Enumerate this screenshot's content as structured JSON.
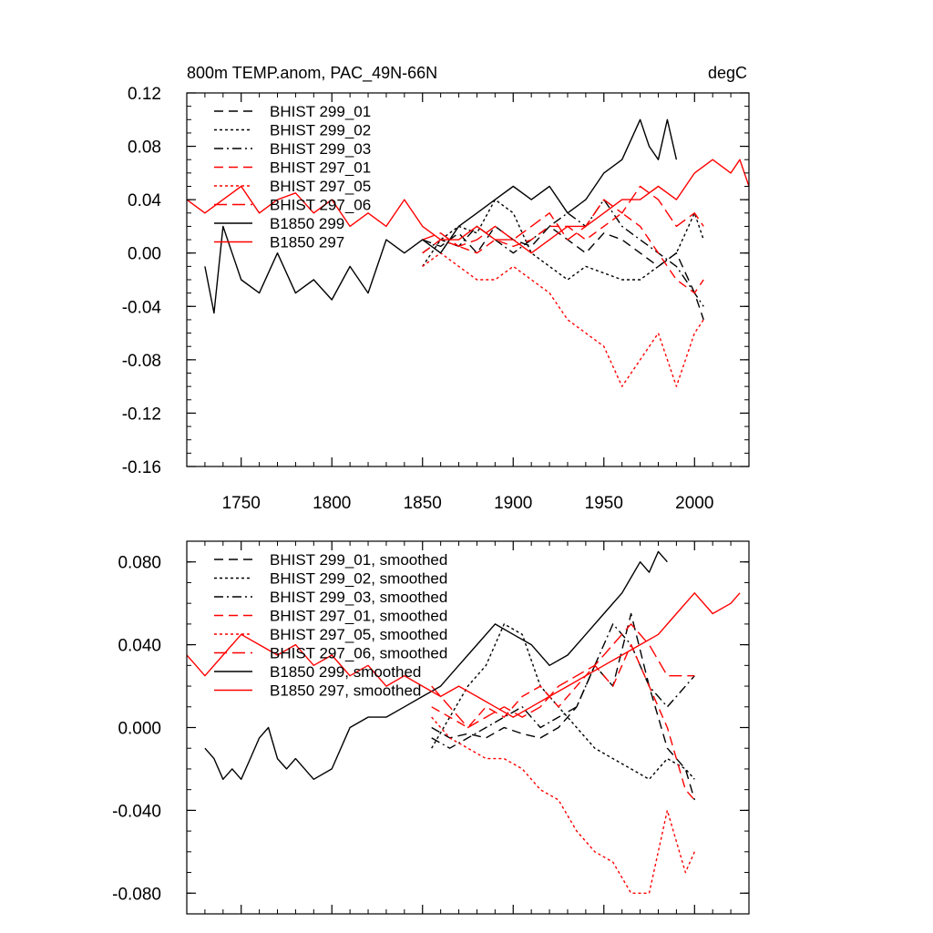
{
  "colors": {
    "black": "#000000",
    "red": "#ff0000"
  },
  "chart_data": [
    {
      "type": "line",
      "title": "800m TEMP.anom, PAC_49N-66N",
      "units": "degC",
      "xlim": [
        1720,
        2030
      ],
      "ylim": [
        -0.16,
        0.12
      ],
      "xticks": [
        1750,
        1800,
        1850,
        1900,
        1950,
        2000
      ],
      "xtick_labels": [
        "1750",
        "1800",
        "1850",
        "1900",
        "1950",
        "2000"
      ],
      "yticks": [
        0.12,
        0.08,
        0.04,
        0.0,
        -0.04,
        -0.08,
        -0.12,
        -0.16
      ],
      "ytick_labels": [
        "0.12",
        "0.08",
        "0.04",
        "0.00",
        "-0.04",
        "-0.08",
        "-0.12",
        "-0.16"
      ],
      "legend_position": "top-left",
      "series": [
        {
          "name": "BHIST 299_01",
          "color": "#000000",
          "dash": "dashed",
          "x": [
            1850,
            1860,
            1870,
            1880,
            1890,
            1900,
            1910,
            1920,
            1930,
            1940,
            1950,
            1960,
            1970,
            1980,
            1990,
            2000,
            2005
          ],
          "y": [
            0.01,
            0.005,
            0.015,
            0.0,
            0.02,
            0.01,
            0.005,
            0.02,
            0.01,
            0.0,
            0.015,
            0.01,
            0.0,
            -0.01,
            0.0,
            -0.03,
            -0.05
          ]
        },
        {
          "name": "BHIST 299_02",
          "color": "#000000",
          "dash": "dotted",
          "x": [
            1850,
            1860,
            1870,
            1880,
            1890,
            1900,
            1910,
            1920,
            1930,
            1940,
            1950,
            1960,
            1970,
            1980,
            1990,
            2000,
            2005
          ],
          "y": [
            -0.01,
            0.01,
            0.02,
            0.015,
            0.04,
            0.03,
            0.0,
            -0.01,
            -0.02,
            -0.01,
            -0.015,
            -0.02,
            -0.02,
            -0.01,
            0.0,
            0.03,
            0.01
          ]
        },
        {
          "name": "BHIST 299_03",
          "color": "#000000",
          "dash": "dashdot",
          "x": [
            1850,
            1860,
            1870,
            1880,
            1890,
            1900,
            1910,
            1920,
            1930,
            1940,
            1950,
            1960,
            1970,
            1980,
            1990,
            2000,
            2005
          ],
          "y": [
            0.0,
            0.01,
            0.005,
            0.02,
            0.01,
            0.0,
            0.01,
            0.02,
            0.03,
            0.02,
            0.04,
            0.02,
            0.01,
            0.0,
            -0.01,
            -0.03,
            -0.04
          ]
        },
        {
          "name": "BHIST 297_01",
          "color": "#ff0000",
          "dash": "dashed",
          "x": [
            1850,
            1860,
            1870,
            1880,
            1890,
            1900,
            1910,
            1920,
            1930,
            1940,
            1950,
            1960,
            1970,
            1980,
            1990,
            2000,
            2005
          ],
          "y": [
            0.0,
            0.01,
            0.005,
            0.0,
            0.01,
            0.005,
            0.01,
            0.02,
            0.02,
            0.01,
            0.02,
            0.03,
            0.02,
            0.0,
            -0.02,
            -0.03,
            -0.02
          ]
        },
        {
          "name": "BHIST 297_05",
          "color": "#ff0000",
          "dash": "dotted",
          "x": [
            1850,
            1860,
            1870,
            1880,
            1890,
            1900,
            1910,
            1920,
            1930,
            1940,
            1950,
            1960,
            1970,
            1980,
            1990,
            2000,
            2005
          ],
          "y": [
            -0.01,
            0.0,
            -0.01,
            -0.02,
            -0.02,
            -0.01,
            -0.02,
            -0.03,
            -0.05,
            -0.06,
            -0.07,
            -0.1,
            -0.08,
            -0.06,
            -0.1,
            -0.06,
            -0.05
          ]
        },
        {
          "name": "BHIST 297_06",
          "color": "#ff0000",
          "dash": "longdash",
          "x": [
            1850,
            1860,
            1870,
            1880,
            1890,
            1900,
            1910,
            1920,
            1930,
            1940,
            1950,
            1960,
            1970,
            1980,
            1990,
            2000,
            2005
          ],
          "y": [
            0.01,
            0.015,
            0.005,
            0.01,
            0.02,
            0.01,
            0.02,
            0.03,
            0.01,
            0.02,
            0.04,
            0.03,
            0.05,
            0.04,
            0.02,
            0.03,
            0.02
          ]
        },
        {
          "name": "B1850 299",
          "color": "#000000",
          "dash": "solid",
          "x": [
            1730,
            1735,
            1740,
            1750,
            1760,
            1770,
            1780,
            1790,
            1800,
            1810,
            1820,
            1830,
            1840,
            1850,
            1860,
            1870,
            1880,
            1890,
            1900,
            1910,
            1920,
            1930,
            1940,
            1950,
            1960,
            1970,
            1975,
            1980,
            1985,
            1990
          ],
          "y": [
            -0.01,
            -0.045,
            0.02,
            -0.02,
            -0.03,
            0.0,
            -0.03,
            -0.02,
            -0.035,
            -0.01,
            -0.03,
            0.01,
            0.0,
            0.01,
            0.0,
            0.02,
            0.03,
            0.04,
            0.05,
            0.04,
            0.05,
            0.03,
            0.04,
            0.06,
            0.07,
            0.1,
            0.08,
            0.07,
            0.1,
            0.07
          ]
        },
        {
          "name": "B1850 297",
          "color": "#ff0000",
          "dash": "solid",
          "x": [
            1720,
            1730,
            1740,
            1750,
            1760,
            1770,
            1780,
            1790,
            1800,
            1810,
            1820,
            1830,
            1840,
            1850,
            1860,
            1870,
            1880,
            1890,
            1900,
            1910,
            1920,
            1930,
            1940,
            1950,
            1960,
            1970,
            1980,
            1990,
            2000,
            2010,
            2020,
            2025,
            2030
          ],
          "y": [
            0.04,
            0.03,
            0.04,
            0.05,
            0.03,
            0.04,
            0.045,
            0.03,
            0.04,
            0.02,
            0.03,
            0.02,
            0.04,
            0.02,
            0.01,
            0.01,
            0.02,
            0.01,
            0.01,
            0.0,
            0.01,
            0.02,
            0.02,
            0.03,
            0.04,
            0.04,
            0.05,
            0.04,
            0.06,
            0.07,
            0.06,
            0.07,
            0.05
          ]
        }
      ]
    },
    {
      "type": "line",
      "title": "",
      "xlim": [
        1720,
        2030
      ],
      "ylim": [
        -0.09,
        0.09
      ],
      "xticks": [
        1750,
        1800,
        1850,
        1900,
        1950,
        2000
      ],
      "yticks": [
        0.08,
        0.04,
        0.0,
        -0.04,
        -0.08
      ],
      "ytick_labels": [
        "0.080",
        "0.040",
        "0.000",
        "-0.040",
        "-0.080"
      ],
      "legend_position": "top-left",
      "series": [
        {
          "name": "BHIST 299_01, smoothed",
          "color": "#000000",
          "dash": "dashed",
          "x": [
            1855,
            1865,
            1875,
            1885,
            1895,
            1905,
            1915,
            1925,
            1935,
            1945,
            1955,
            1965,
            1975,
            1985,
            1995,
            2000
          ],
          "y": [
            0.0,
            -0.005,
            -0.003,
            -0.005,
            0.0,
            -0.003,
            -0.005,
            0.0,
            0.01,
            0.03,
            0.02,
            0.055,
            0.02,
            -0.01,
            -0.02,
            -0.035
          ]
        },
        {
          "name": "BHIST 299_02, smoothed",
          "color": "#000000",
          "dash": "dotted",
          "x": [
            1855,
            1865,
            1875,
            1885,
            1895,
            1905,
            1915,
            1925,
            1935,
            1945,
            1955,
            1965,
            1975,
            1985,
            1995,
            2000
          ],
          "y": [
            -0.01,
            0.005,
            0.02,
            0.03,
            0.05,
            0.045,
            0.02,
            0.01,
            0.0,
            -0.01,
            -0.015,
            -0.02,
            -0.025,
            -0.015,
            -0.02,
            -0.025
          ]
        },
        {
          "name": "BHIST 299_03, smoothed",
          "color": "#000000",
          "dash": "dashdot",
          "x": [
            1855,
            1865,
            1875,
            1885,
            1895,
            1905,
            1915,
            1925,
            1935,
            1945,
            1955,
            1965,
            1975,
            1985,
            1995,
            2000
          ],
          "y": [
            -0.005,
            -0.01,
            -0.005,
            0.0,
            0.005,
            0.01,
            0.0,
            0.005,
            0.01,
            0.03,
            0.05,
            0.04,
            0.02,
            0.01,
            0.02,
            0.025
          ]
        },
        {
          "name": "BHIST 297_01, smoothed",
          "color": "#ff0000",
          "dash": "dashed",
          "x": [
            1855,
            1865,
            1875,
            1885,
            1895,
            1905,
            1915,
            1925,
            1935,
            1945,
            1955,
            1965,
            1975,
            1985,
            1995,
            2000
          ],
          "y": [
            0.01,
            0.005,
            0.0,
            0.01,
            0.005,
            0.015,
            0.02,
            0.01,
            0.02,
            0.03,
            0.02,
            0.04,
            0.02,
            0.0,
            -0.03,
            -0.035
          ]
        },
        {
          "name": "BHIST 297_05, smoothed",
          "color": "#ff0000",
          "dash": "dotted",
          "x": [
            1855,
            1865,
            1875,
            1885,
            1895,
            1905,
            1915,
            1925,
            1935,
            1945,
            1955,
            1965,
            1975,
            1985,
            1995,
            2000
          ],
          "y": [
            0.005,
            -0.005,
            -0.01,
            -0.015,
            -0.015,
            -0.02,
            -0.03,
            -0.035,
            -0.05,
            -0.06,
            -0.065,
            -0.08,
            -0.08,
            -0.04,
            -0.07,
            -0.06
          ]
        },
        {
          "name": "BHIST 297_06, smoothed",
          "color": "#ff0000",
          "dash": "longdash",
          "x": [
            1855,
            1865,
            1875,
            1885,
            1895,
            1905,
            1915,
            1925,
            1935,
            1945,
            1955,
            1965,
            1975,
            1985,
            1995,
            2000
          ],
          "y": [
            0.02,
            0.01,
            0.0,
            0.005,
            0.01,
            0.005,
            0.01,
            0.02,
            0.025,
            0.03,
            0.04,
            0.05,
            0.04,
            0.025,
            0.025,
            0.025
          ]
        },
        {
          "name": "B1850 299, smoothed",
          "color": "#000000",
          "dash": "solid",
          "x": [
            1730,
            1735,
            1740,
            1745,
            1750,
            1755,
            1760,
            1765,
            1770,
            1775,
            1780,
            1790,
            1800,
            1810,
            1820,
            1830,
            1840,
            1850,
            1860,
            1870,
            1880,
            1890,
            1900,
            1910,
            1920,
            1930,
            1940,
            1950,
            1960,
            1970,
            1975,
            1980,
            1985
          ],
          "y": [
            -0.01,
            -0.015,
            -0.025,
            -0.02,
            -0.025,
            -0.015,
            -0.005,
            0.0,
            -0.015,
            -0.02,
            -0.015,
            -0.025,
            -0.02,
            0.0,
            0.005,
            0.005,
            0.01,
            0.015,
            0.02,
            0.03,
            0.04,
            0.05,
            0.045,
            0.04,
            0.03,
            0.035,
            0.045,
            0.055,
            0.065,
            0.08,
            0.075,
            0.085,
            0.08
          ]
        },
        {
          "name": "B1850 297, smoothed",
          "color": "#ff0000",
          "dash": "solid",
          "x": [
            1720,
            1725,
            1730,
            1740,
            1750,
            1760,
            1770,
            1780,
            1790,
            1800,
            1810,
            1820,
            1830,
            1840,
            1850,
            1860,
            1870,
            1880,
            1890,
            1900,
            1910,
            1920,
            1930,
            1940,
            1950,
            1960,
            1970,
            1980,
            1990,
            2000,
            2010,
            2020,
            2025
          ],
          "y": [
            0.035,
            0.03,
            0.025,
            0.035,
            0.045,
            0.04,
            0.035,
            0.04,
            0.03,
            0.035,
            0.025,
            0.03,
            0.02,
            0.025,
            0.02,
            0.015,
            0.02,
            0.015,
            0.01,
            0.005,
            0.01,
            0.015,
            0.02,
            0.025,
            0.03,
            0.035,
            0.04,
            0.045,
            0.055,
            0.065,
            0.055,
            0.06,
            0.065
          ]
        }
      ]
    }
  ]
}
